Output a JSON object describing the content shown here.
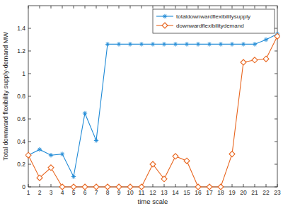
{
  "chart_data": {
    "type": "line",
    "x_label": "time scale",
    "y_label": "Total downward flexibility supply-demand MW",
    "x": [
      1,
      2,
      3,
      4,
      5,
      6,
      7,
      8,
      9,
      10,
      11,
      12,
      13,
      14,
      15,
      16,
      17,
      18,
      19,
      20,
      21,
      22,
      23
    ],
    "series": [
      {
        "name": "totaldownwardflexibilitysupply",
        "color": "#1f8ad6",
        "marker": "asterisk",
        "line_style": "solid",
        "values": [
          0.28,
          0.33,
          0.28,
          0.29,
          0.09,
          0.65,
          0.41,
          1.26,
          1.26,
          1.26,
          1.26,
          1.26,
          1.26,
          1.26,
          1.26,
          1.26,
          1.26,
          1.26,
          1.26,
          1.26,
          1.26,
          1.3,
          1.35
        ]
      },
      {
        "name": "downwardflexibilitydemand",
        "color": "#e8651e",
        "marker": "diamond",
        "line_style": "solid",
        "values": [
          0.28,
          0.08,
          0.17,
          0,
          0,
          0,
          0,
          0,
          0,
          0,
          0,
          0.2,
          0.07,
          0.27,
          0.23,
          0,
          0,
          0,
          0.29,
          1.1,
          1.12,
          1.13,
          1.33
        ]
      }
    ],
    "xlim": [
      1,
      23
    ],
    "xticks": [
      1,
      2,
      3,
      4,
      5,
      6,
      7,
      8,
      9,
      10,
      11,
      12,
      13,
      14,
      15,
      16,
      17,
      18,
      19,
      20,
      21,
      22,
      23
    ],
    "ylim": [
      0,
      1.6
    ],
    "yticks": [
      0,
      0.2,
      0.4,
      0.6,
      0.8,
      1,
      1.2,
      1.4
    ],
    "grid": false,
    "legend": "top-right"
  }
}
